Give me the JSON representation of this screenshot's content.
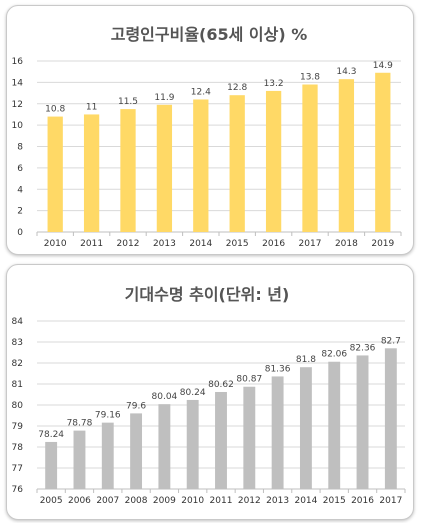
{
  "chart_data": [
    {
      "type": "bar",
      "title": "고령인구비율(65세 이상) %",
      "categories": [
        "2010",
        "2011",
        "2012",
        "2013",
        "2014",
        "2015",
        "2016",
        "2017",
        "2018",
        "2019"
      ],
      "values": [
        10.8,
        11,
        11.5,
        11.9,
        12.4,
        12.8,
        13.2,
        13.8,
        14.3,
        14.9
      ],
      "value_labels": [
        "10.8",
        "11",
        "11.5",
        "11.9",
        "12.4",
        "12.8",
        "13.2",
        "13.8",
        "14.3",
        "14.9"
      ],
      "ylim": [
        0,
        16
      ],
      "yticks": [
        0,
        2,
        4,
        6,
        8,
        10,
        12,
        14,
        16
      ],
      "color": "#FFD966",
      "grid": true
    },
    {
      "type": "bar",
      "title": "기대수명 추이(단위: 년)",
      "categories": [
        "2005",
        "2006",
        "2007",
        "2008",
        "2009",
        "2010",
        "2011",
        "2012",
        "2013",
        "2014",
        "2015",
        "2016",
        "2017"
      ],
      "values": [
        78.24,
        78.78,
        79.16,
        79.6,
        80.04,
        80.24,
        80.62,
        80.87,
        81.36,
        81.8,
        82.06,
        82.36,
        82.7
      ],
      "value_labels": [
        "78.24",
        "78.78",
        "79.16",
        "79.6",
        "80.04",
        "80.24",
        "80.62",
        "80.87",
        "81.36",
        "81.8",
        "82.06",
        "82.36",
        "82.7"
      ],
      "ylim": [
        76,
        84
      ],
      "yticks": [
        76,
        77,
        78,
        79,
        80,
        81,
        82,
        83,
        84
      ],
      "color": "#BFBFBF",
      "grid": true
    }
  ]
}
